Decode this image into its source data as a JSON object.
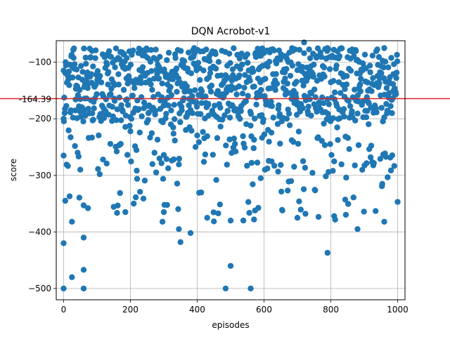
{
  "chart_data": {
    "type": "scatter",
    "title": "DQN Acrobot-v1",
    "xlabel": "episodes",
    "ylabel": "score",
    "xlim": [
      -22,
      1022
    ],
    "ylim": [
      -520,
      -62
    ],
    "xticks": [
      0,
      200,
      400,
      600,
      800,
      1000
    ],
    "yticks": [
      -500,
      -400,
      -300,
      -200,
      -100
    ],
    "xtick_labels": [
      "0",
      "200",
      "400",
      "600",
      "800",
      "1000"
    ],
    "ytick_labels": [
      "−500",
      "−400",
      "−300",
      "−200",
      "−100"
    ],
    "grid": true,
    "point_color": "#1f77b4",
    "hline": {
      "y": -164.39,
      "label": "-164.39",
      "color": "#d62728"
    },
    "n_points": 1000,
    "series": [
      {
        "y_min": -500,
        "y_max": -64,
        "mean": -164.39
      }
    ],
    "sample_points": [
      [
        0,
        -500
      ],
      [
        0,
        -420
      ],
      [
        0,
        -265
      ],
      [
        0,
        -200
      ],
      [
        5,
        -345
      ],
      [
        25,
        -480
      ],
      [
        25,
        -382
      ],
      [
        50,
        -290
      ],
      [
        60,
        -500
      ],
      [
        60,
        -467
      ],
      [
        60,
        -410
      ],
      [
        60,
        -353
      ],
      [
        85,
        -80
      ],
      [
        185,
        -365
      ],
      [
        210,
        -350
      ],
      [
        300,
        -365
      ],
      [
        345,
        -395
      ],
      [
        350,
        -418
      ],
      [
        380,
        -402
      ],
      [
        430,
        -375
      ],
      [
        485,
        -500
      ],
      [
        500,
        -460
      ],
      [
        500,
        -380
      ],
      [
        560,
        -500
      ],
      [
        570,
        -378
      ],
      [
        590,
        -305
      ],
      [
        700,
        -375
      ],
      [
        720,
        -65
      ],
      [
        790,
        -75
      ],
      [
        790,
        -437
      ],
      [
        810,
        -372
      ],
      [
        880,
        -395
      ],
      [
        960,
        -75
      ],
      [
        960,
        -382
      ],
      [
        1000,
        -347
      ]
    ]
  }
}
